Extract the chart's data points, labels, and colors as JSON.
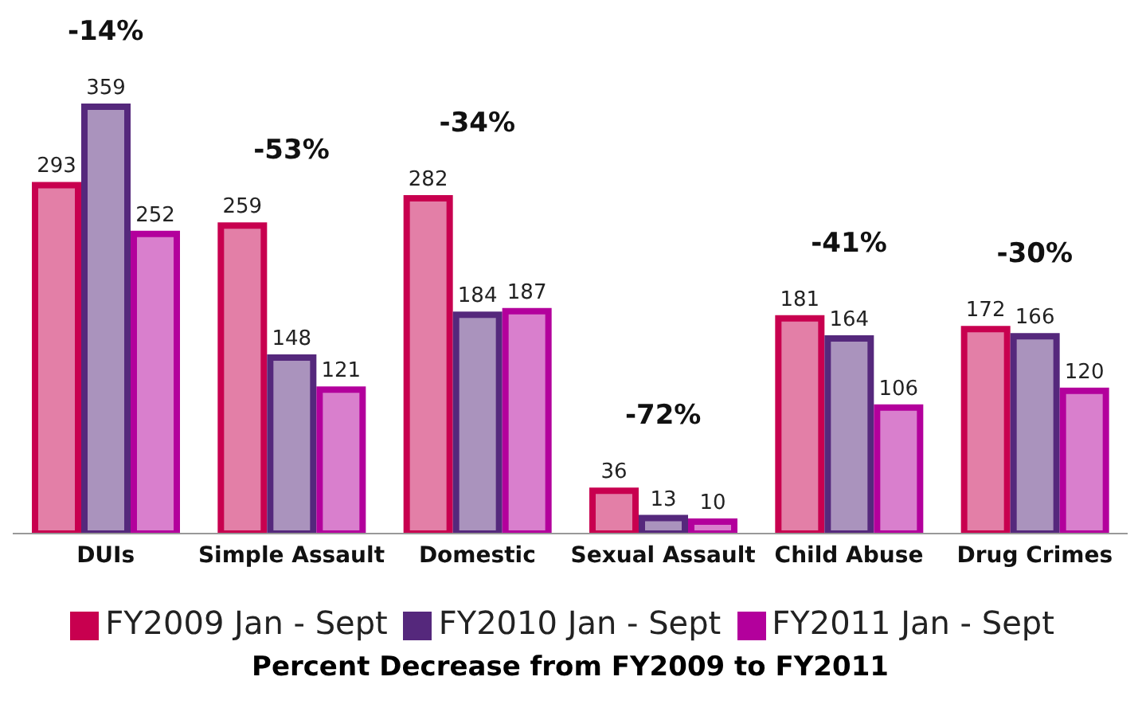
{
  "chart_data": {
    "type": "bar",
    "title": "Percent Decrease from FY2009 to FY2011",
    "categories": [
      "DUIs",
      "Simple Assault",
      "Domestic",
      "Sexual Assault",
      "Child Abuse",
      "Drug Crimes"
    ],
    "series": [
      {
        "name": "FY2009 Jan - Sept",
        "color": "#c8004f",
        "values": [
          293,
          259,
          282,
          36,
          181,
          172
        ]
      },
      {
        "name": "FY2010 Jan - Sept",
        "color": "#55287c",
        "values": [
          359,
          148,
          184,
          13,
          164,
          166
        ]
      },
      {
        "name": "FY2011 Jan - Sept",
        "color": "#b3009c",
        "values": [
          252,
          121,
          187,
          10,
          106,
          120
        ]
      }
    ],
    "data_labels": true,
    "annotations": [
      "-14%",
      "-53%",
      "-34%",
      "-72%",
      "-41%",
      "-30%"
    ],
    "legend": "bottom",
    "grid": false
  }
}
